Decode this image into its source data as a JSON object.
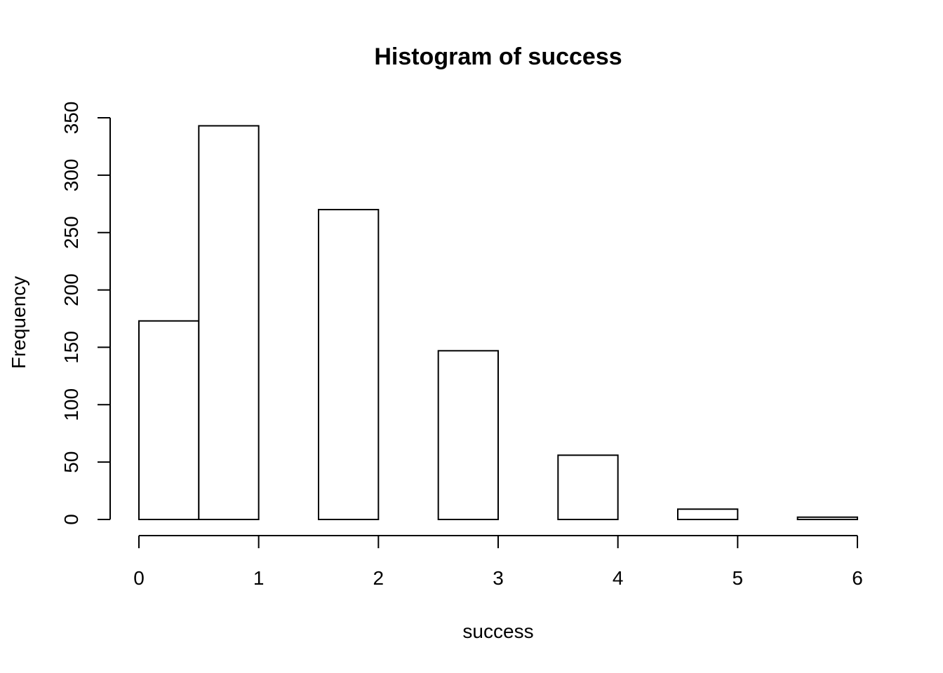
{
  "chart_data": {
    "type": "bar",
    "title": "Histogram of success",
    "xlabel": "success",
    "ylabel": "Frequency",
    "xlim": [
      0,
      6
    ],
    "ylim": [
      0,
      350
    ],
    "x_ticks": [
      0,
      1,
      2,
      3,
      4,
      5,
      6
    ],
    "y_ticks": [
      0,
      50,
      100,
      150,
      200,
      250,
      300,
      350
    ],
    "grid": false,
    "bins": [
      {
        "start": 0.0,
        "end": 0.5,
        "count": 173
      },
      {
        "start": 0.5,
        "end": 1.0,
        "count": 343
      },
      {
        "start": 1.0,
        "end": 1.5,
        "count": 0
      },
      {
        "start": 1.5,
        "end": 2.0,
        "count": 270
      },
      {
        "start": 2.0,
        "end": 2.5,
        "count": 0
      },
      {
        "start": 2.5,
        "end": 3.0,
        "count": 147
      },
      {
        "start": 3.0,
        "end": 3.5,
        "count": 0
      },
      {
        "start": 3.5,
        "end": 4.0,
        "count": 56
      },
      {
        "start": 4.0,
        "end": 4.5,
        "count": 0
      },
      {
        "start": 4.5,
        "end": 5.0,
        "count": 9
      },
      {
        "start": 5.0,
        "end": 5.5,
        "count": 0
      },
      {
        "start": 5.5,
        "end": 6.0,
        "count": 2
      }
    ],
    "colors": {
      "bar_fill": "#ffffff",
      "bar_stroke": "#000000"
    }
  }
}
